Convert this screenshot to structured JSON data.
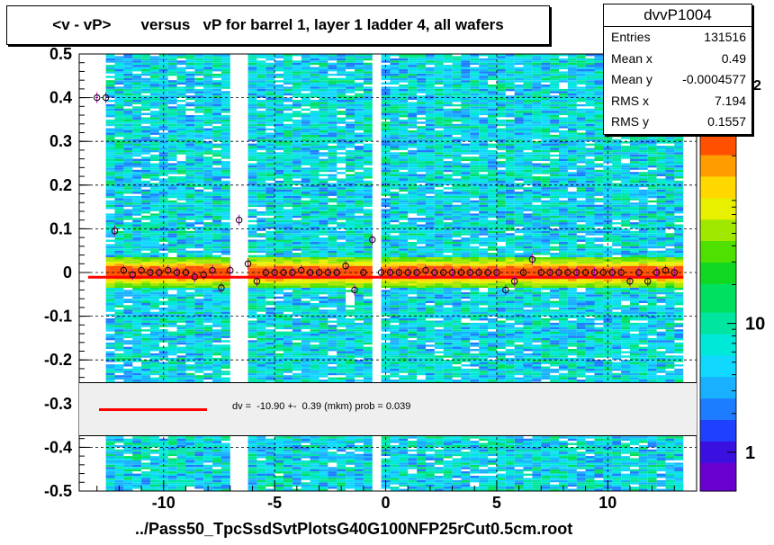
{
  "title": "<v - vP>       versus   vP for barrel 1, layer 1 ladder 4, all wafers",
  "stats": {
    "name": "dvvP1004",
    "rows": [
      {
        "label": "Entries",
        "value": "131516"
      },
      {
        "label": "Mean x",
        "value": "0.49"
      },
      {
        "label": "Mean y",
        "value": "-0.0004577"
      },
      {
        "label": "RMS x",
        "value": "7.194"
      },
      {
        "label": "RMS y",
        "value": "0.1557"
      }
    ]
  },
  "fit": {
    "text": "dv =  -10.90 +-  0.39 (mkm) prob = 0.039",
    "line_color": "#ff0000"
  },
  "x_axis_label": "../Pass50_TpcSsdSvtPlotsG40G100NFP25rCut0.5cm.root",
  "colors": {
    "profile_line": "#ff0000",
    "palette": [
      "#6a00d0",
      "#3a10e0",
      "#1e40ff",
      "#1d7cff",
      "#18b0ff",
      "#10d8ff",
      "#00e8d8",
      "#00e6a0",
      "#00e060",
      "#10d820",
      "#50e000",
      "#a0e800",
      "#e8f000",
      "#ffd800",
      "#ff9c00",
      "#ff5000"
    ]
  },
  "chart_data": {
    "type": "heatmap",
    "title": "<v - vP>       versus   vP for barrel 1, layer 1 ladder 4, all wafers",
    "xlabel": "../Pass50_TpcSsdSvtPlotsG40G100NFP25rCut0.5cm.root",
    "ylabel": "",
    "xlim": [
      -13.8,
      14.0
    ],
    "ylim": [
      -0.5,
      0.5
    ],
    "x_ticks": [
      -10,
      -5,
      0,
      5,
      10
    ],
    "x_tick_labels": [
      "-10",
      "-5",
      "0",
      "5",
      "10"
    ],
    "y_ticks": [
      -0.5,
      -0.4,
      -0.3,
      -0.2,
      -0.1,
      0,
      0.1,
      0.2,
      0.3,
      0.4,
      0.5
    ],
    "y_tick_labels": [
      "-0.5",
      "-0.4",
      "-0.3",
      "-0.2",
      "-0.1",
      "0",
      "0.1",
      "0.2",
      "0.3",
      "0.4",
      "0.5"
    ],
    "z_scale": "log",
    "z_range": [
      0.5,
      300
    ],
    "z_ticks": [
      1,
      10
    ],
    "z_tick_labels": [
      "1",
      "10"
    ],
    "z_top_label_partial": "2",
    "grid": true,
    "fit_line": {
      "x": [
        -13.4,
        13.4
      ],
      "y": [
        -0.0109,
        -0.0109
      ]
    },
    "profile_points": {
      "x": [
        -13.0,
        -12.6,
        -12.2,
        -11.8,
        -11.4,
        -11.0,
        -10.6,
        -10.2,
        -9.8,
        -9.4,
        -9.0,
        -8.6,
        -8.2,
        -7.8,
        -7.4,
        -7.0,
        -6.6,
        -6.2,
        -5.8,
        -5.4,
        -5.0,
        -4.6,
        -4.2,
        -3.8,
        -3.4,
        -3.0,
        -2.6,
        -2.2,
        -1.8,
        -1.4,
        -1.0,
        -0.6,
        -0.2,
        0.2,
        0.6,
        1.0,
        1.4,
        1.8,
        2.2,
        2.6,
        3.0,
        3.4,
        3.8,
        4.2,
        4.6,
        5.0,
        5.4,
        5.8,
        6.2,
        6.6,
        7.0,
        7.4,
        7.8,
        8.2,
        8.6,
        9.0,
        9.4,
        9.8,
        10.2,
        10.6,
        11.0,
        11.4,
        11.8,
        12.2,
        12.6,
        13.0
      ],
      "y": [
        0.4,
        0.4,
        0.095,
        0.005,
        -0.005,
        0.005,
        0.0,
        0.0,
        0.005,
        0.0,
        0.0,
        -0.01,
        -0.005,
        0.005,
        -0.035,
        0.005,
        0.12,
        0.02,
        -0.02,
        0.0,
        0.0,
        0.0,
        0.0,
        0.005,
        0.0,
        0.0,
        0.0,
        0.0,
        0.015,
        -0.04,
        0.0,
        0.075,
        0.0,
        0.0,
        0.0,
        0.0,
        0.0,
        0.005,
        0.0,
        0.0,
        0.0,
        0.0,
        0.0,
        0.0,
        0.0,
        0.0,
        -0.04,
        -0.02,
        0.0,
        0.03,
        0.0,
        0.0,
        0.0,
        0.0,
        0.0,
        0.0,
        0.0,
        0.0,
        0.0,
        0.0,
        -0.02,
        0.0,
        -0.02,
        0.0,
        0.005,
        0.0
      ]
    },
    "empty_x_ranges": [
      [
        -13.8,
        -12.6
      ],
      [
        -7.0,
        -6.6
      ],
      [
        -6.4,
        -6.1
      ],
      [
        -0.6,
        -0.3
      ],
      [
        13.3,
        14.0
      ]
    ]
  }
}
